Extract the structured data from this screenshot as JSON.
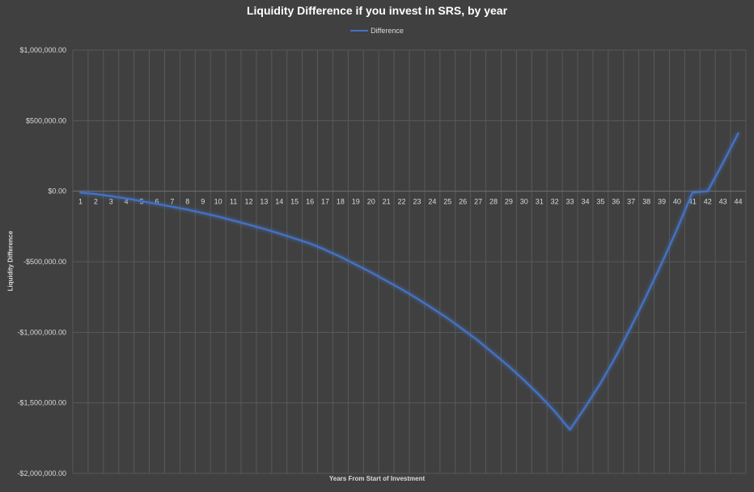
{
  "chart_data": {
    "type": "line",
    "title": "Liquidity Difference if you invest in SRS, by year",
    "xlabel": "Years From Start of Investment",
    "ylabel": "Liquidity Difference",
    "ylim": [
      -2000000,
      1000000
    ],
    "yticks": [
      1000000,
      500000,
      0,
      -500000,
      -1000000,
      -1500000,
      -2000000
    ],
    "ytick_labels": [
      "$1,000,000.00",
      "$500,000.00",
      "$0.00",
      "-$500,000.00",
      "-$1,000,000.00",
      "-$1,500,000.00",
      "-$2,000,000.00"
    ],
    "categories": [
      "1",
      "2",
      "3",
      "4",
      "5",
      "6",
      "7",
      "8",
      "9",
      "10",
      "11",
      "12",
      "13",
      "14",
      "15",
      "16",
      "17",
      "18",
      "19",
      "20",
      "21",
      "22",
      "23",
      "24",
      "25",
      "26",
      "27",
      "28",
      "29",
      "30",
      "31",
      "32",
      "33",
      "34",
      "35",
      "36",
      "37",
      "38",
      "39",
      "40",
      "41",
      "42",
      "43",
      "44"
    ],
    "grid": true,
    "legend_position": "top",
    "colors": {
      "background": "#404040",
      "grid": "#595959",
      "line": "#4472c4",
      "text": "#d9d9d9",
      "title": "#ffffff"
    },
    "series": [
      {
        "name": "Difference",
        "values": [
          -10000,
          -20000,
          -35000,
          -52000,
          -70000,
          -90000,
          -110000,
          -130000,
          -155000,
          -180000,
          -208000,
          -237000,
          -267000,
          -300000,
          -335000,
          -370000,
          -415000,
          -465000,
          -520000,
          -575000,
          -635000,
          -695000,
          -760000,
          -830000,
          -900000,
          -980000,
          -1060000,
          -1150000,
          -1240000,
          -1340000,
          -1445000,
          -1560000,
          -1690000,
          -1530000,
          -1360000,
          -1170000,
          -960000,
          -740000,
          -510000,
          -270000,
          -10000,
          0,
          200000,
          410000
        ]
      }
    ]
  }
}
